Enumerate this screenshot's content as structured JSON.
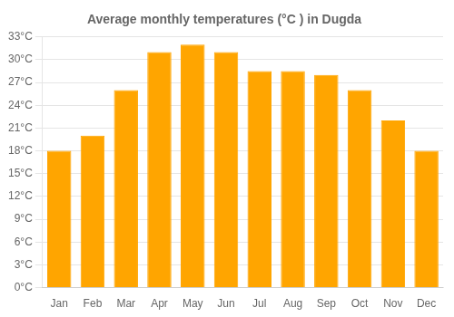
{
  "chart_data": {
    "type": "bar",
    "title": "Average monthly temperatures (°C ) in Dugda",
    "categories": [
      "Jan",
      "Feb",
      "Mar",
      "Apr",
      "May",
      "Jun",
      "Jul",
      "Aug",
      "Sep",
      "Oct",
      "Nov",
      "Dec"
    ],
    "values": [
      18,
      20,
      26,
      31,
      32,
      31,
      28.5,
      28.5,
      28,
      26,
      22,
      18
    ],
    "color": "#FFA500",
    "ylim": [
      0,
      33
    ],
    "yticks": [
      {
        "value": 0,
        "label": "0°C"
      },
      {
        "value": 3,
        "label": "3°C"
      },
      {
        "value": 6,
        "label": "6°C"
      },
      {
        "value": 9,
        "label": "9°C"
      },
      {
        "value": 12,
        "label": "12°C"
      },
      {
        "value": 15,
        "label": "15°C"
      },
      {
        "value": 18,
        "label": "18°C"
      },
      {
        "value": 21,
        "label": "21°C"
      },
      {
        "value": 24,
        "label": "24°C"
      },
      {
        "value": 27,
        "label": "27°C"
      },
      {
        "value": 30,
        "label": "30°C"
      },
      {
        "value": 33,
        "label": "33°C"
      }
    ],
    "grid": true
  }
}
